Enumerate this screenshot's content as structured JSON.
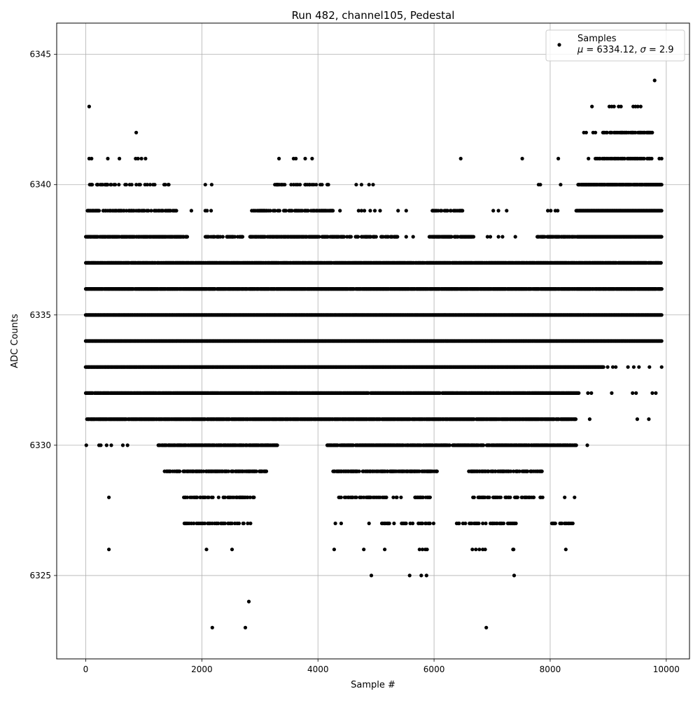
{
  "chart_data": {
    "type": "scatter",
    "title": "Run 482, channel105, Pedestal",
    "xlabel": "Sample #",
    "ylabel": "ADC Counts",
    "xlim": [
      -500,
      10400
    ],
    "ylim": [
      6321.8,
      6346.2
    ],
    "xticks": [
      0,
      2000,
      4000,
      6000,
      8000,
      10000
    ],
    "yticks": [
      6325,
      6330,
      6335,
      6340,
      6345
    ],
    "grid": true,
    "marker_color": "#000000",
    "legend": {
      "placement": "top-right",
      "entries": [
        {
          "label": "Samples",
          "stats_mu_label": "μ",
          "stats_mu_value": "6334.12",
          "stats_sigma_label": "σ",
          "stats_sigma_value": "2.9"
        }
      ]
    },
    "series": [
      {
        "name": "Samples",
        "segments": [
          {
            "y": 6323,
            "x": [
              2180,
              2750,
              6900
            ]
          },
          {
            "y": 6324,
            "x": [
              2810
            ]
          },
          {
            "y": 6325,
            "x": [
              4920,
              5580,
              5780,
              5870,
              7380
            ]
          },
          {
            "y": 6326,
            "x": [
              400,
              2080,
              2520,
              4280,
              4790,
              5150,
              5750,
              5800,
              5850,
              5880,
              6660,
              6720,
              6780,
              6840,
              6880,
              7360,
              7370,
              8270
            ]
          },
          {
            "y": 6344,
            "x": [
              9800
            ]
          },
          {
            "y": 6343,
            "x": [
              60,
              8720,
              9020,
              9060,
              9100,
              9180,
              9220,
              9430,
              9470,
              9510,
              9560
            ]
          },
          {
            "y": 6342,
            "x": [
              870,
              8580,
              8620,
              8740,
              8780
            ]
          },
          {
            "y": 6341,
            "x": [
              60,
              100,
              380,
              580,
              860,
              900,
              960,
              1030,
              3330,
              3580,
              3620,
              3780,
              3900,
              6460,
              7520,
              8140,
              8660,
              9880,
              9920
            ]
          }
        ],
        "bands": [
          {
            "y": 6342,
            "from": 8900,
            "to": 9780,
            "density": 0.55
          },
          {
            "y": 6341,
            "from": 8760,
            "to": 9780,
            "density": 0.55
          },
          {
            "y": 6340,
            "from": 40,
            "to": 1460,
            "density": 0.3
          },
          {
            "y": 6340,
            "from": 3250,
            "to": 4220,
            "density": 0.3
          },
          {
            "y": 6340,
            "from": 8480,
            "to": 9920,
            "density": 0.95
          },
          {
            "y": 6339,
            "from": 30,
            "to": 1560,
            "density": 0.6
          },
          {
            "y": 6339,
            "from": 2860,
            "to": 4260,
            "density": 0.6
          },
          {
            "y": 6339,
            "from": 5950,
            "to": 6520,
            "density": 0.5
          },
          {
            "y": 6339,
            "from": 8450,
            "to": 9920,
            "density": 1.0
          },
          {
            "y": 6338,
            "from": 0,
            "to": 1750,
            "density": 0.9
          },
          {
            "y": 6338,
            "from": 2040,
            "to": 2700,
            "density": 0.5
          },
          {
            "y": 6338,
            "from": 2820,
            "to": 4450,
            "density": 0.8
          },
          {
            "y": 6338,
            "from": 4500,
            "to": 5380,
            "density": 0.5
          },
          {
            "y": 6338,
            "from": 5920,
            "to": 6680,
            "density": 0.8
          },
          {
            "y": 6338,
            "from": 7780,
            "to": 8430,
            "density": 0.7
          },
          {
            "y": 6338,
            "from": 8460,
            "to": 9920,
            "density": 1.0
          },
          {
            "y": 6337,
            "from": 0,
            "to": 9920,
            "density": 0.9
          },
          {
            "y": 6336,
            "from": 0,
            "to": 9920,
            "density": 0.95
          },
          {
            "y": 6335,
            "from": 0,
            "to": 9920,
            "density": 1.0
          },
          {
            "y": 6334,
            "from": 0,
            "to": 9920,
            "density": 1.0
          },
          {
            "y": 6333,
            "from": 0,
            "to": 8920,
            "density": 1.0
          },
          {
            "y": 6332,
            "from": 0,
            "to": 8500,
            "density": 0.95
          },
          {
            "y": 6331,
            "from": 20,
            "to": 8440,
            "density": 0.9
          },
          {
            "y": 6330,
            "from": 1240,
            "to": 3300,
            "density": 0.8
          },
          {
            "y": 6330,
            "from": 4160,
            "to": 6280,
            "density": 0.85
          },
          {
            "y": 6330,
            "from": 6320,
            "to": 8450,
            "density": 0.85
          },
          {
            "y": 6329,
            "from": 1360,
            "to": 3120,
            "density": 0.6
          },
          {
            "y": 6329,
            "from": 4260,
            "to": 6060,
            "density": 0.6
          },
          {
            "y": 6329,
            "from": 6600,
            "to": 7860,
            "density": 0.55
          },
          {
            "y": 6328,
            "from": 1680,
            "to": 2900,
            "density": 0.45
          },
          {
            "y": 6328,
            "from": 4340,
            "to": 5460,
            "density": 0.4
          },
          {
            "y": 6328,
            "from": 5670,
            "to": 5940,
            "density": 0.6
          },
          {
            "y": 6328,
            "from": 6640,
            "to": 7880,
            "density": 0.45
          },
          {
            "y": 6327,
            "from": 1640,
            "to": 2880,
            "density": 0.3
          },
          {
            "y": 6327,
            "from": 5100,
            "to": 5990,
            "density": 0.35
          },
          {
            "y": 6327,
            "from": 6340,
            "to": 7420,
            "density": 0.35
          },
          {
            "y": 6327,
            "from": 7920,
            "to": 8440,
            "density": 0.35
          }
        ],
        "extra_points": [
          {
            "y": 6340,
            "x": [
              2060,
              2170,
              4660,
              4750,
              4880,
              4950,
              7800,
              7830,
              8180
            ]
          },
          {
            "y": 6339,
            "x": [
              1820,
              2060,
              2090,
              2160,
              4380,
              4700,
              4750,
              4800,
              4900,
              4980,
              5070,
              5380,
              5520,
              7020,
              7110,
              7250,
              7960,
              8010,
              8090,
              8130
            ]
          },
          {
            "y": 6338,
            "x": [
              5520,
              5640,
              6920,
              6970,
              7110,
              7180,
              7400
            ]
          },
          {
            "y": 6333,
            "x": [
              8990,
              9080,
              9130,
              9340,
              9440,
              9530,
              9710,
              9920
            ]
          },
          {
            "y": 6332,
            "x": [
              8650,
              8710,
              9060,
              9420,
              9480,
              9760,
              9820
            ]
          },
          {
            "y": 6331,
            "x": [
              8680,
              9500,
              9700
            ]
          },
          {
            "y": 6330,
            "x": [
              10,
              230,
              260,
              360,
              440,
              640,
              720,
              8640
            ]
          },
          {
            "y": 6328,
            "x": [
              400,
              8250,
              8420
            ]
          },
          {
            "y": 6327,
            "x": [
              4300,
              4400,
              4880
            ]
          }
        ]
      }
    ]
  }
}
